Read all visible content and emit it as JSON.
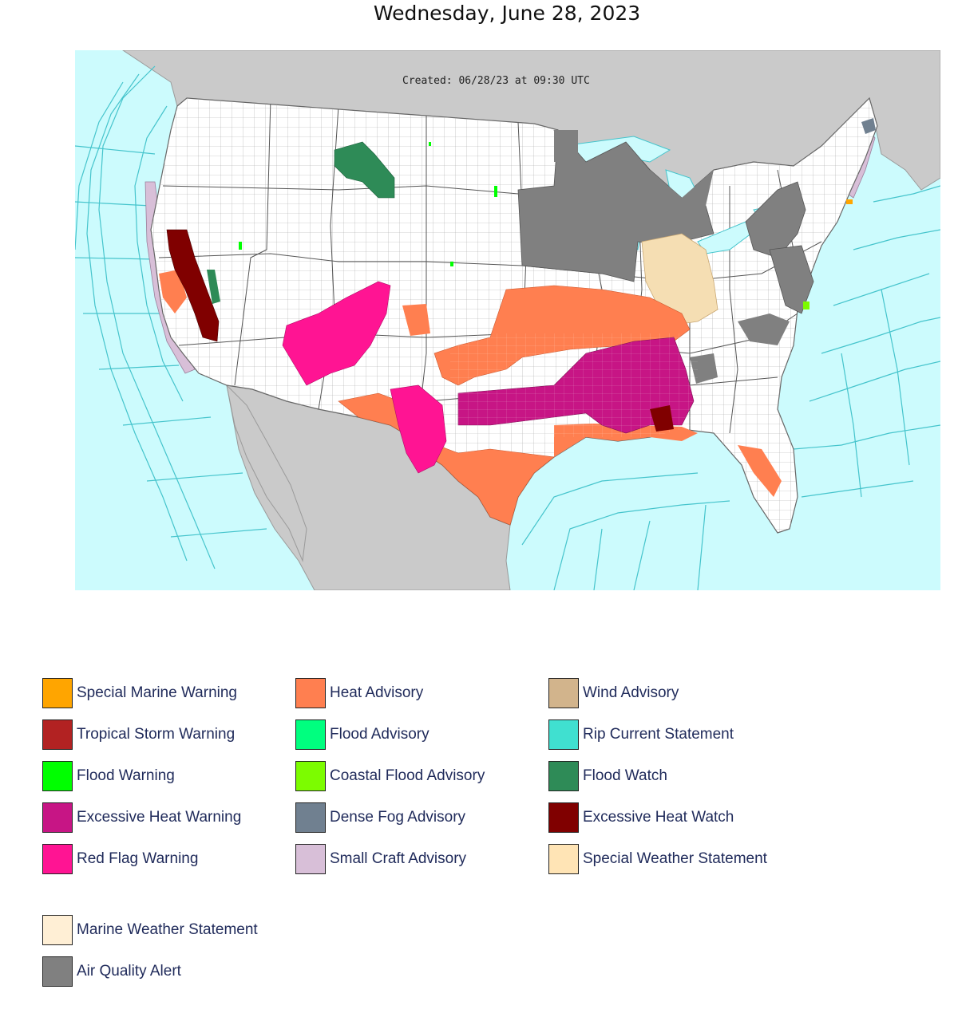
{
  "title": "Wednesday, June 28, 2023",
  "map": {
    "created_label": "Created: 06/28/23 at 09:30 UTC",
    "colors": {
      "ocean": "#ccfbfd",
      "land_other": "#cccccc",
      "land_us": "#ffffff",
      "marine_zone_lines": "#45c4cc",
      "county_lines": "#a0a0a0"
    }
  },
  "legend": [
    {
      "label": "Special Marine Warning",
      "color": "#ffa500"
    },
    {
      "label": "Tropical Storm Warning",
      "color": "#b22222"
    },
    {
      "label": "Flood Warning",
      "color": "#00ff00"
    },
    {
      "label": "Excessive Heat Warning",
      "color": "#c71585"
    },
    {
      "label": "Red Flag Warning",
      "color": "#ff1493"
    },
    {
      "label": "Heat Advisory",
      "color": "#ff7f50"
    },
    {
      "label": "Flood Advisory",
      "color": "#00ff7f"
    },
    {
      "label": "Coastal Flood Advisory",
      "color": "#7cfc00"
    },
    {
      "label": "Dense Fog Advisory",
      "color": "#708090"
    },
    {
      "label": "Small Craft Advisory",
      "color": "#d8bfd8"
    },
    {
      "label": "Wind Advisory",
      "color": "#d2b48c"
    },
    {
      "label": "Rip Current Statement",
      "color": "#40e0d0"
    },
    {
      "label": "Flood Watch",
      "color": "#2e8b57"
    },
    {
      "label": "Excessive Heat Watch",
      "color": "#800000"
    },
    {
      "label": "Special Weather Statement",
      "color": "#ffe4b5"
    },
    {
      "label": "Marine Weather Statement",
      "color": "#ffefd5"
    },
    {
      "label": "Air Quality Alert",
      "color": "#808080"
    }
  ]
}
